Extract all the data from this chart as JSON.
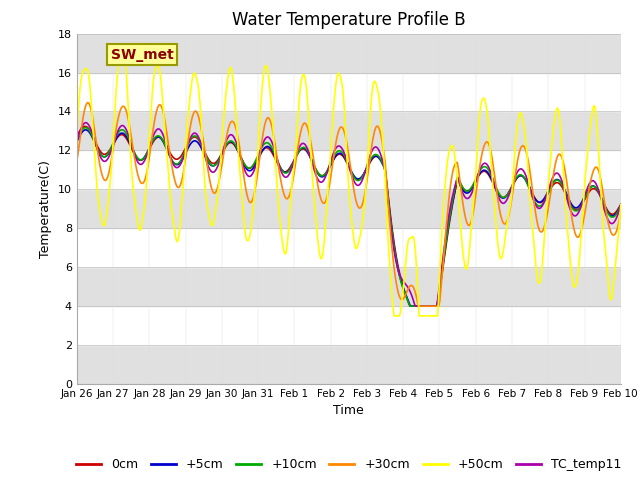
{
  "title": "Water Temperature Profile B",
  "xlabel": "Time",
  "ylabel": "Temperature(C)",
  "ylim": [
    0,
    18
  ],
  "yticks": [
    0,
    2,
    4,
    6,
    8,
    10,
    12,
    14,
    16,
    18
  ],
  "xtick_labels": [
    "Jan 26",
    "Jan 27",
    "Jan 28",
    "Jan 29",
    "Jan 30",
    "Jan 31",
    "Feb 1",
    "Feb 2",
    "Feb 3",
    "Feb 4",
    "Feb 5",
    "Feb 6",
    "Feb 7",
    "Feb 8",
    "Feb 9",
    "Feb 10"
  ],
  "series_colors": [
    "#cc0000",
    "#0000cc",
    "#00aa00",
    "#ff8800",
    "#ffff00",
    "#aa00aa"
  ],
  "series_labels": [
    "0cm",
    "+5cm",
    "+10cm",
    "+30cm",
    "+50cm",
    "TC_temp11"
  ],
  "annotation_text": "SW_met",
  "annotation_color": "#8b0000",
  "annotation_bg": "#ffff99",
  "annotation_edge": "#999900",
  "background_color": "#ffffff",
  "alt_band_color": "#e0e0e0",
  "line_width": 1.2,
  "title_fontsize": 12,
  "tick_fontsize": 8,
  "label_fontsize": 9,
  "legend_fontsize": 9
}
